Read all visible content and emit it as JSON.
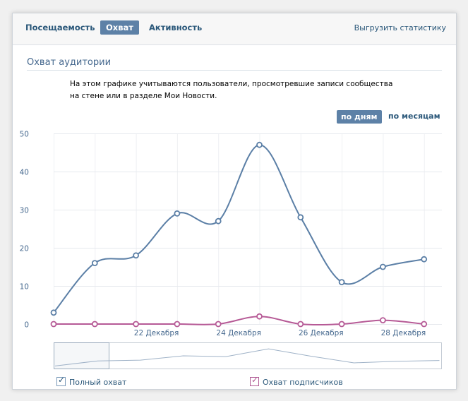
{
  "tabs": [
    {
      "label": "Посещаемость"
    },
    {
      "label": "Охват"
    },
    {
      "label": "Активность"
    }
  ],
  "export_label": "Выгрузить статистику",
  "section_title": "Охват аудитории",
  "description": "На этом графике учитываются пользователи, просмотревшие записи сообщества на стене или в разделе Мои Новости.",
  "period": {
    "by_days": "по дням",
    "by_months": "по месяцам"
  },
  "legend": {
    "full_reach": "Полный охват",
    "subscriber_reach": "Охват подписчиков"
  },
  "colors": {
    "full_reach": "#5b7fa6",
    "subscriber_reach": "#b65a96",
    "accent": "#5d81a7"
  },
  "chart_data": {
    "type": "line",
    "ylim": [
      0,
      50
    ],
    "yticks": [
      0,
      10,
      20,
      30,
      40,
      50
    ],
    "xtick_labels": [
      "22 Декабря",
      "24 Декабря",
      "26 Декабря",
      "28 Декабря"
    ],
    "series": [
      {
        "name": "Полный охват",
        "values": [
          3,
          16,
          18,
          29,
          27,
          47,
          28,
          11,
          15,
          17
        ]
      },
      {
        "name": "Охват подписчиков",
        "values": [
          0,
          0,
          0,
          0,
          0,
          2,
          0,
          0,
          1,
          0
        ]
      }
    ]
  }
}
